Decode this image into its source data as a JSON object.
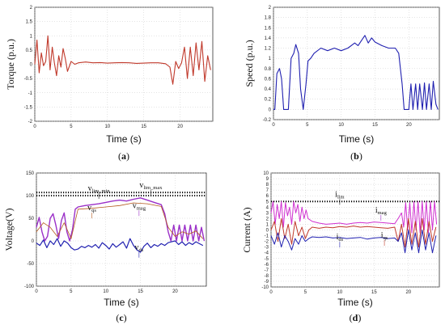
{
  "chart_data": [
    {
      "id": "a",
      "type": "line",
      "caption_letter": "a",
      "xlabel": "Time (s)",
      "ylabel": "Torque (p.u.)",
      "xlim": [
        0,
        24.5
      ],
      "ylim": [
        -2,
        2
      ],
      "xticks": [
        0,
        5,
        10,
        15,
        20
      ],
      "yticks": [
        -2,
        -1.5,
        -1,
        -0.5,
        0,
        0.5,
        1,
        1.5,
        2
      ],
      "grid": "dotted",
      "series": [
        {
          "color": "#c0392b",
          "x": [
            0,
            0.3,
            0.6,
            0.9,
            1.2,
            1.5,
            1.8,
            2.1,
            2.4,
            2.7,
            3.0,
            3.3,
            3.6,
            3.9,
            4.2,
            4.5,
            5.0,
            5.5,
            6.0,
            7,
            8,
            9,
            10,
            11,
            12,
            13,
            14,
            15,
            16,
            17,
            18,
            18.6,
            19.0,
            19.4,
            19.8,
            20.2,
            20.6,
            21.0,
            21.4,
            21.8,
            22.2,
            22.6,
            23.0,
            23.4,
            23.8,
            24.2
          ],
          "y": [
            0.0,
            0.85,
            -0.3,
            0.4,
            -0.05,
            0.1,
            1.0,
            -0.2,
            0.6,
            0.05,
            -0.4,
            0.3,
            -0.1,
            0.55,
            0.2,
            -0.25,
            0.1,
            0.0,
            0.05,
            0.08,
            0.05,
            0.06,
            0.04,
            0.05,
            0.06,
            0.05,
            0.03,
            0.04,
            0.05,
            0.05,
            0.02,
            -0.1,
            -0.7,
            0.1,
            -0.15,
            0.05,
            0.6,
            -0.5,
            0.6,
            -0.4,
            0.75,
            -0.2,
            0.8,
            -0.6,
            0.3,
            -0.2
          ]
        }
      ]
    },
    {
      "id": "b",
      "type": "line",
      "caption_letter": "b",
      "xlabel": "Time (s)",
      "ylabel": "Speed (p.u.)",
      "xlim": [
        0,
        24.5
      ],
      "ylim": [
        -0.2,
        2
      ],
      "xticks": [
        0,
        5,
        10,
        15,
        20
      ],
      "yticks": [
        -0.2,
        0,
        0.2,
        0.4,
        0.6,
        0.8,
        1,
        1.2,
        1.4,
        1.6,
        1.8,
        2
      ],
      "grid": "dotted",
      "series": [
        {
          "color": "#2020b0",
          "x": [
            0,
            0.2,
            0.5,
            0.9,
            1.2,
            1.5,
            1.9,
            2.2,
            2.6,
            3.0,
            3.3,
            3.7,
            4.0,
            4.4,
            4.8,
            5.1,
            5.5,
            6.0,
            7.0,
            8.0,
            9.0,
            10,
            11,
            12,
            12.5,
            13,
            13.5,
            14,
            14.5,
            15,
            16,
            17,
            18,
            18.5,
            19,
            19.3,
            19.6,
            20,
            20.3,
            20.6,
            21,
            21.3,
            21.6,
            22,
            22.3,
            22.6,
            23,
            23.3,
            23.6,
            24,
            24.3
          ],
          "y": [
            0,
            0,
            0.7,
            0.8,
            0.6,
            0,
            0,
            0,
            1.0,
            1.1,
            1.27,
            1.1,
            0.4,
            0,
            0.5,
            0.95,
            1.0,
            1.1,
            1.2,
            1.15,
            1.2,
            1.15,
            1.2,
            1.3,
            1.25,
            1.35,
            1.45,
            1.3,
            1.4,
            1.32,
            1.25,
            1.2,
            1.2,
            1.1,
            0.5,
            0.0,
            0.0,
            0.0,
            0.5,
            0.0,
            0.5,
            0.0,
            0.5,
            0.0,
            0.52,
            0.0,
            0.5,
            0.0,
            0.55,
            0.1,
            0.0
          ]
        }
      ]
    },
    {
      "id": "c",
      "type": "line",
      "caption_letter": "c",
      "xlabel": "Time (s)",
      "ylabel": "Voltage(V)",
      "xlim": [
        0,
        24.5
      ],
      "ylim": [
        -100,
        150
      ],
      "xticks": [
        0,
        5,
        10,
        15,
        20
      ],
      "yticks": [
        -100,
        -50,
        0,
        50,
        100,
        150
      ],
      "grid": "dotted",
      "reference_lines": [
        {
          "y": 107,
          "label_main": "v",
          "label_sub": "lim_max"
        },
        {
          "y": 100,
          "label_main": "v",
          "label_sub": "lim_min"
        }
      ],
      "annotations": [
        {
          "main": "v",
          "sub": "lim_min",
          "x": 9,
          "y": 100,
          "color": "#111"
        },
        {
          "main": "v",
          "sub": "lim_max",
          "x": 16.5,
          "y": 107,
          "color": "#111"
        },
        {
          "main": "v",
          "sub": "qs",
          "x": 8,
          "y": 57,
          "color": "#b45a1e"
        },
        {
          "main": "v",
          "sub": "mag",
          "x": 14.8,
          "y": 62,
          "color": "#9b30c8"
        },
        {
          "main": "v",
          "sub": "ds",
          "x": 14.8,
          "y": -30,
          "color": "#2020b0"
        }
      ],
      "series": [
        {
          "color": "#9b30c8",
          "width": 1.4,
          "x": [
            0,
            0.4,
            0.8,
            1.2,
            1.6,
            2.0,
            2.4,
            2.8,
            3.2,
            3.6,
            4.0,
            4.4,
            4.8,
            5.2,
            5.6,
            6.0,
            7,
            8,
            9,
            10,
            11,
            12,
            13,
            14,
            15,
            16,
            17,
            18,
            18.5,
            19.0,
            19.4,
            19.8,
            20.2,
            20.6,
            21.0,
            21.4,
            21.8,
            22.2,
            22.6,
            23.0,
            23.4,
            23.8,
            24.2
          ],
          "y": [
            30,
            52,
            20,
            0,
            10,
            50,
            60,
            35,
            5,
            45,
            62,
            20,
            0,
            25,
            70,
            75,
            78,
            80,
            82,
            85,
            88,
            90,
            88,
            92,
            95,
            90,
            85,
            80,
            60,
            20,
            0,
            35,
            0,
            35,
            0,
            35,
            0,
            35,
            0,
            35,
            0,
            30,
            0
          ]
        },
        {
          "color": "#b45a1e",
          "width": 0.8,
          "x": [
            0,
            1,
            2,
            3,
            4,
            5,
            6,
            8,
            10,
            12,
            14,
            16,
            18,
            19,
            20,
            21,
            22,
            23,
            24
          ],
          "y": [
            20,
            40,
            30,
            10,
            40,
            5,
            70,
            72,
            75,
            78,
            84,
            82,
            76,
            30,
            10,
            20,
            15,
            22,
            5
          ]
        },
        {
          "color": "#2020b0",
          "width": 1.2,
          "x": [
            0,
            0.5,
            1,
            1.5,
            2,
            2.5,
            3,
            3.5,
            4,
            4.5,
            5,
            5.5,
            6,
            6.5,
            7,
            7.5,
            8,
            8.5,
            9,
            9.5,
            10,
            10.5,
            11,
            11.5,
            12,
            12.5,
            13,
            13.5,
            14,
            14.5,
            15,
            15.5,
            16,
            16.5,
            17,
            17.5,
            18,
            18.5,
            19,
            19.5,
            20,
            20.5,
            21,
            21.5,
            22,
            22.5,
            23,
            23.5,
            24
          ],
          "y": [
            -5,
            -10,
            2,
            -15,
            0,
            -8,
            5,
            -12,
            0,
            -5,
            -15,
            -20,
            -18,
            -12,
            -15,
            -10,
            -14,
            -8,
            -16,
            -4,
            -10,
            -18,
            -6,
            -14,
            -8,
            -2,
            -16,
            5,
            -10,
            -20,
            -25,
            -12,
            -5,
            -15,
            -8,
            -12,
            -6,
            -10,
            -4,
            -2,
            0,
            -8,
            -2,
            -10,
            -4,
            -8,
            -2,
            -6,
            -10
          ]
        }
      ]
    },
    {
      "id": "d",
      "type": "line",
      "caption_letter": "d",
      "xlabel": "Time (s)",
      "ylabel": "Current (A)",
      "xlim": [
        0,
        24.5
      ],
      "ylim": [
        -10,
        10
      ],
      "xticks": [
        0,
        5,
        10,
        15,
        20
      ],
      "yticks": [
        -10,
        -9,
        -8,
        -7,
        -6,
        -5,
        -4,
        -3,
        -2,
        -1,
        0,
        1,
        2,
        3,
        4,
        5,
        6,
        7,
        8,
        9,
        10
      ],
      "grid": "dotted",
      "reference_lines": [
        {
          "y": 5,
          "label_main": "i",
          "label_sub": "lim"
        }
      ],
      "annotations": [
        {
          "main": "i",
          "sub": "lim",
          "x": 10,
          "y": 5,
          "color": "#111"
        },
        {
          "main": "i",
          "sub": "mag",
          "x": 16,
          "y": 2.2,
          "color": "#9b30c8"
        },
        {
          "main": "i",
          "sub": "ds",
          "x": 10,
          "y": -2.5,
          "color": "#2020b0"
        },
        {
          "main": "i",
          "sub": "qs",
          "x": 16.5,
          "y": -2.2,
          "color": "#c0392b"
        }
      ],
      "series": [
        {
          "color": "#d030d0",
          "width": 1.0,
          "x": [
            0,
            0.3,
            0.6,
            0.9,
            1.2,
            1.5,
            1.8,
            2.1,
            2.4,
            2.7,
            3.0,
            3.3,
            3.6,
            3.9,
            4.2,
            4.5,
            4.8,
            5.1,
            5.4,
            6,
            7,
            8,
            9,
            10,
            11,
            12,
            13,
            14,
            15,
            16,
            17,
            18,
            18.5,
            19,
            19.3,
            19.6,
            19.9,
            20.2,
            20.5,
            20.8,
            21.1,
            21.4,
            21.7,
            22.0,
            22.3,
            22.6,
            22.9,
            23.2,
            23.5,
            23.8,
            24.1
          ],
          "y": [
            3,
            5,
            1,
            4.5,
            2,
            5,
            0.5,
            4.8,
            2.5,
            4,
            1,
            5,
            3,
            4.5,
            1.5,
            4,
            2,
            3.5,
            2,
            1.5,
            1.2,
            1.0,
            1.1,
            1.2,
            1.0,
            1.2,
            1.3,
            1.2,
            1.4,
            1.3,
            1.2,
            1.1,
            2,
            3,
            0.5,
            4.8,
            0,
            4.8,
            -0.5,
            5,
            0,
            5,
            -0.5,
            5,
            0,
            5,
            -0.5,
            5,
            0,
            5,
            1
          ]
        },
        {
          "color": "#c0392b",
          "width": 1.0,
          "x": [
            0,
            0.5,
            1,
            1.5,
            2,
            2.5,
            3,
            3.5,
            4,
            4.5,
            5,
            5.5,
            6,
            7,
            8,
            9,
            10,
            11,
            12,
            13,
            14,
            15,
            16,
            17,
            18,
            18.5,
            19,
            19.5,
            20,
            20.5,
            21,
            21.5,
            22,
            22.5,
            23,
            23.5,
            24
          ],
          "y": [
            0,
            1.5,
            -2,
            2,
            -1.5,
            1,
            -2.5,
            1.5,
            -1,
            0.5,
            -1.5,
            0,
            0.5,
            0.3,
            0.5,
            0.4,
            0.6,
            0.5,
            0.7,
            0.5,
            0.6,
            0.5,
            0.4,
            0.3,
            0.5,
            -2,
            1,
            -3,
            2,
            -2.5,
            1.5,
            -3,
            2,
            -2.5,
            1.5,
            -2,
            0.5
          ]
        },
        {
          "color": "#2020b0",
          "width": 1.0,
          "x": [
            0,
            0.5,
            1,
            1.5,
            2,
            2.5,
            3,
            3.5,
            4,
            4.5,
            5,
            5.5,
            6,
            7,
            8,
            9,
            10,
            11,
            12,
            13,
            14,
            15,
            16,
            17,
            18,
            18.5,
            19,
            19.5,
            20,
            20.5,
            21,
            21.5,
            22,
            22.5,
            23,
            23.5,
            24
          ],
          "y": [
            -1,
            -2.5,
            -0.5,
            -3,
            -1,
            -2,
            -3.5,
            -1.5,
            -2.5,
            -1,
            -2,
            -1.5,
            -1.2,
            -1.3,
            -1.2,
            -1.4,
            -1.3,
            -1.5,
            -1.4,
            -1.3,
            -1.6,
            -1.4,
            -1.3,
            -1.5,
            -1.4,
            -2,
            -0.5,
            -4,
            0,
            -3.5,
            -0.5,
            -4,
            0,
            -3.5,
            -0.5,
            -4,
            -1
          ]
        }
      ]
    }
  ]
}
